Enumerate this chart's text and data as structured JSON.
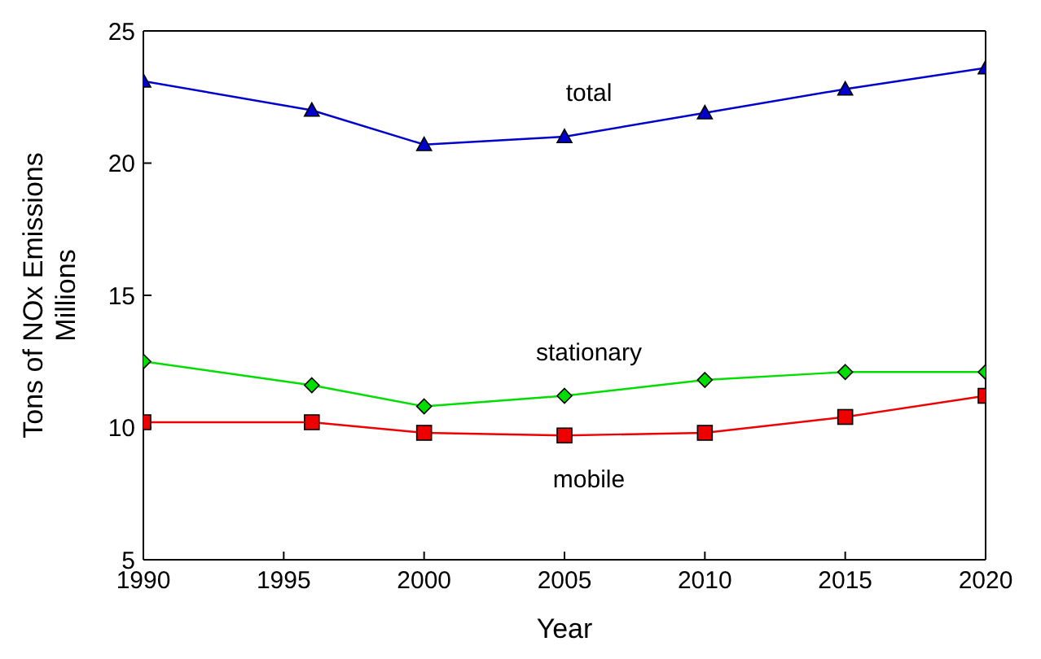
{
  "chart_data": {
    "type": "line",
    "xlabel": "Year",
    "ylabel": "Tons of NOx Emissions\nMillions",
    "x": [
      1990,
      1996,
      2000,
      2005,
      2010,
      2015,
      2020
    ],
    "series": [
      {
        "name": "total",
        "color": "#0000cc",
        "marker": "triangle",
        "values": [
          23.1,
          22.0,
          20.7,
          21.0,
          21.9,
          22.8,
          23.6
        ]
      },
      {
        "name": "stationary",
        "color": "#00dd00",
        "marker": "diamond",
        "values": [
          12.5,
          11.6,
          10.8,
          11.2,
          11.8,
          12.1,
          12.1
        ]
      },
      {
        "name": "mobile",
        "color": "#ee0000",
        "marker": "square",
        "values": [
          10.2,
          10.2,
          9.8,
          9.7,
          9.8,
          10.4,
          11.2
        ]
      }
    ],
    "xlim": [
      1990,
      2020
    ],
    "xticks": [
      1990,
      1995,
      2000,
      2005,
      2010,
      2015,
      2020
    ],
    "ylim": [
      5,
      25
    ],
    "yticks": [
      5,
      10,
      15,
      20,
      25
    ],
    "line_style": "solid"
  }
}
